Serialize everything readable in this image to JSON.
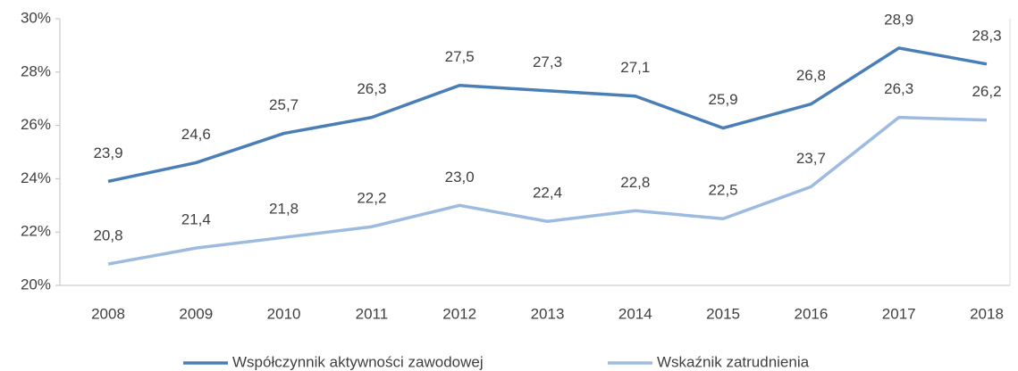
{
  "chart_data": {
    "type": "line",
    "categories": [
      "2008",
      "2009",
      "2010",
      "2011",
      "2012",
      "2013",
      "2014",
      "2015",
      "2016",
      "2017",
      "2018"
    ],
    "series": [
      {
        "name": "Współczynnik aktywności zawodowej",
        "color": "#4a7eb6",
        "values": [
          23.9,
          24.6,
          25.7,
          26.3,
          27.5,
          27.3,
          27.1,
          25.9,
          26.8,
          28.9,
          28.3
        ],
        "value_labels": [
          "23,9",
          "24,6",
          "25,7",
          "26,3",
          "27,5",
          "27,3",
          "27,1",
          "25,9",
          "26,8",
          "28,9",
          "28,3"
        ]
      },
      {
        "name": "Wskaźnik zatrudnienia",
        "color": "#9dbbe0",
        "values": [
          20.8,
          21.4,
          21.8,
          22.2,
          23.0,
          22.4,
          22.8,
          22.5,
          23.7,
          26.3,
          26.2
        ],
        "value_labels": [
          "20,8",
          "21,4",
          "21,8",
          "22,2",
          "23,0",
          "22,4",
          "22,8",
          "22,5",
          "23,7",
          "26,3",
          "26,2"
        ]
      }
    ],
    "ylim": [
      20,
      30
    ],
    "yticks": [
      {
        "value": 20,
        "label": "20%"
      },
      {
        "value": 22,
        "label": "22%"
      },
      {
        "value": 24,
        "label": "24%"
      },
      {
        "value": 26,
        "label": "26%"
      },
      {
        "value": 28,
        "label": "28%"
      },
      {
        "value": 30,
        "label": "30%"
      }
    ],
    "grid": false,
    "legend": "bottom"
  }
}
